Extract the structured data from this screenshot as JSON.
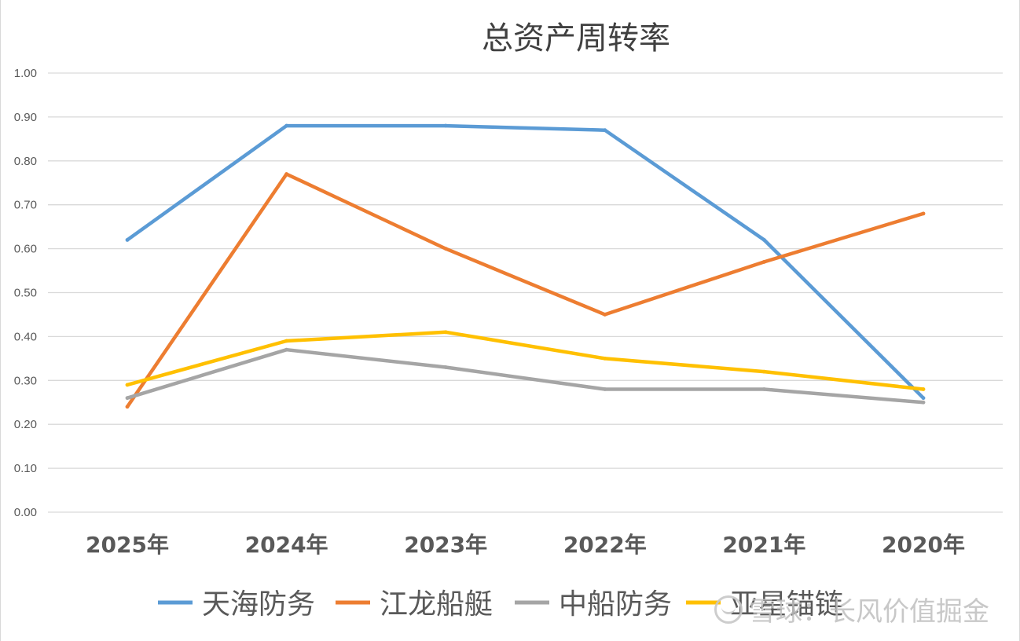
{
  "chart_data": {
    "type": "line",
    "title": "总资产周转率",
    "categories": [
      "2025年",
      "2024年",
      "2023年",
      "2022年",
      "2021年",
      "2020年"
    ],
    "ylim": [
      0,
      1.0
    ],
    "yticks": [
      "0.00",
      "0.10",
      "0.20",
      "0.30",
      "0.40",
      "0.50",
      "0.60",
      "0.70",
      "0.80",
      "0.90",
      "1.00"
    ],
    "grid": true,
    "legend_position": "bottom",
    "series": [
      {
        "name": "天海防务",
        "color": "#5B9BD5",
        "values": [
          0.62,
          0.88,
          0.88,
          0.87,
          0.62,
          0.26
        ]
      },
      {
        "name": "江龙船艇",
        "color": "#ED7D31",
        "values": [
          0.24,
          0.77,
          0.6,
          0.45,
          0.57,
          0.68
        ]
      },
      {
        "name": "中船防务",
        "color": "#A5A5A5",
        "values": [
          0.26,
          0.37,
          0.33,
          0.28,
          0.28,
          0.25
        ]
      },
      {
        "name": "亚星锚链",
        "color": "#FFC000",
        "values": [
          0.29,
          0.39,
          0.41,
          0.35,
          0.32,
          0.28
        ]
      }
    ]
  },
  "watermark": {
    "icon": "snowball-logo-icon",
    "text": "雪球：长风价值掘金"
  }
}
